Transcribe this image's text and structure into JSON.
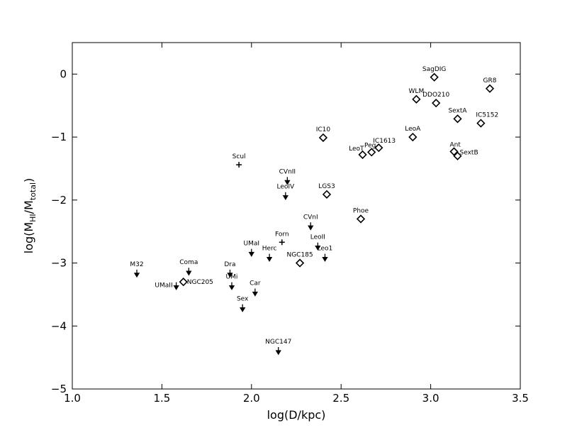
{
  "chart_data": {
    "type": "scatter",
    "xlabel": "log(D/kpc)",
    "ylabel_parts": [
      "log(M",
      "HI",
      "/M",
      "total",
      ")"
    ],
    "xlim": [
      1.0,
      3.5
    ],
    "ylim": [
      -5,
      0.5
    ],
    "xticks": [
      {
        "value": 1,
        "label": "1.0"
      },
      1.5,
      {
        "value": 2,
        "label": "2.0"
      },
      2.5,
      {
        "value": 3,
        "label": "3.0"
      },
      3.5
    ],
    "yticks": [
      {
        "value": -5,
        "label": "−5"
      },
      {
        "value": -4,
        "label": "−4"
      },
      {
        "value": -3,
        "label": "−3"
      },
      {
        "value": -2,
        "label": "−2"
      },
      {
        "value": -1,
        "label": "−1"
      },
      0
    ],
    "color": "#000000",
    "points": [
      {
        "label": "M32",
        "x": 1.36,
        "y": -3.15,
        "marker": "arrow"
      },
      {
        "label": "Coma",
        "x": 1.65,
        "y": -3.12,
        "marker": "arrow"
      },
      {
        "label": "UMaII",
        "x": 1.58,
        "y": -3.35,
        "marker": "arrow"
      },
      {
        "label": "NGC205",
        "x": 1.62,
        "y": -3.3,
        "marker": "diamond"
      },
      {
        "label": "Dra",
        "x": 1.88,
        "y": -3.15,
        "marker": "arrow"
      },
      {
        "label": "UMi",
        "x": 1.89,
        "y": -3.35,
        "marker": "arrow"
      },
      {
        "label": "Car",
        "x": 2.02,
        "y": -3.45,
        "marker": "arrow"
      },
      {
        "label": "Sex",
        "x": 1.95,
        "y": -3.7,
        "marker": "arrow"
      },
      {
        "label": "NGC147",
        "x": 2.15,
        "y": -4.38,
        "marker": "arrow"
      },
      {
        "label": "UMaI",
        "x": 2.0,
        "y": -2.82,
        "marker": "arrow"
      },
      {
        "label": "Herc",
        "x": 2.1,
        "y": -2.9,
        "marker": "arrow"
      },
      {
        "label": "Forn",
        "x": 2.17,
        "y": -2.67,
        "marker": "plus"
      },
      {
        "label": "NGC185",
        "x": 2.27,
        "y": -3.0,
        "marker": "diamond"
      },
      {
        "label": "LeoII",
        "x": 2.37,
        "y": -2.72,
        "marker": "arrow"
      },
      {
        "label": "Leo1",
        "x": 2.41,
        "y": -2.9,
        "marker": "arrow"
      },
      {
        "label": "CVnI",
        "x": 2.33,
        "y": -2.4,
        "marker": "arrow"
      },
      {
        "label": "LGS3",
        "x": 2.42,
        "y": -1.91,
        "marker": "diamond"
      },
      {
        "label": "Phoe",
        "x": 2.61,
        "y": -2.3,
        "marker": "diamond"
      },
      {
        "label": "LeoIV",
        "x": 2.19,
        "y": -1.92,
        "marker": "arrow"
      },
      {
        "label": "CVnII",
        "x": 2.2,
        "y": -1.68,
        "marker": "arrow"
      },
      {
        "label": "Scul",
        "x": 1.93,
        "y": -1.44,
        "marker": "plus"
      },
      {
        "label": "IC10",
        "x": 2.4,
        "y": -1.01,
        "marker": "diamond"
      },
      {
        "label": "LeoT",
        "x": 2.62,
        "y": -1.28,
        "marker": "diamond"
      },
      {
        "label": "Peg",
        "x": 2.67,
        "y": -1.24,
        "marker": "diamond"
      },
      {
        "label": "IC1613",
        "x": 2.71,
        "y": -1.17,
        "marker": "diamond"
      },
      {
        "label": "LeoA",
        "x": 2.9,
        "y": -1.0,
        "marker": "diamond"
      },
      {
        "label": "WLM",
        "x": 2.92,
        "y": -0.4,
        "marker": "diamond"
      },
      {
        "label": "SagDIG",
        "x": 3.02,
        "y": -0.05,
        "marker": "diamond"
      },
      {
        "label": "DDO210",
        "x": 3.03,
        "y": -0.46,
        "marker": "diamond"
      },
      {
        "label": "SextA",
        "x": 3.15,
        "y": -0.71,
        "marker": "diamond"
      },
      {
        "label": "IC5152",
        "x": 3.28,
        "y": -0.78,
        "marker": "diamond"
      },
      {
        "label": "GR8",
        "x": 3.33,
        "y": -0.23,
        "marker": "diamond"
      },
      {
        "label": "Ant",
        "x": 3.13,
        "y": -1.23,
        "marker": "diamond"
      },
      {
        "label": "SextB",
        "x": 3.15,
        "y": -1.3,
        "marker": "diamond"
      }
    ]
  }
}
